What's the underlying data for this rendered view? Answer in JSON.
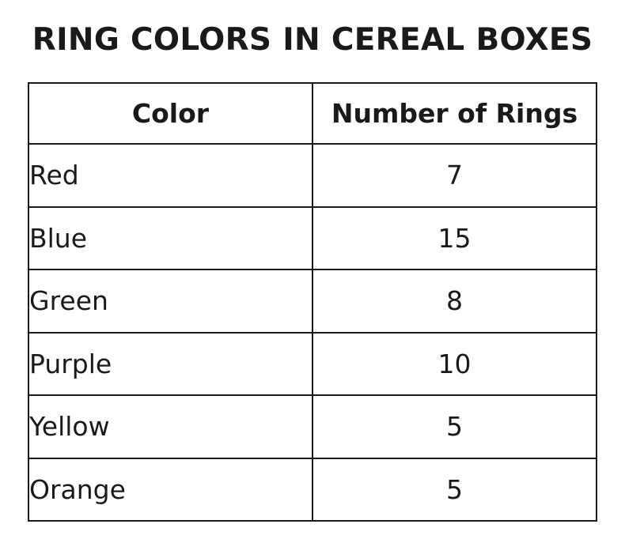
{
  "chart_data": {
    "type": "table",
    "title": "RING COLORS IN CEREAL BOXES",
    "columns": [
      "Color",
      "Number of Rings"
    ],
    "rows": [
      {
        "color": "Red",
        "count": "7"
      },
      {
        "color": "Blue",
        "count": "15"
      },
      {
        "color": "Green",
        "count": "8"
      },
      {
        "color": "Purple",
        "count": "10"
      },
      {
        "color": "Yellow",
        "count": "5"
      },
      {
        "color": "Orange",
        "count": "5"
      }
    ]
  }
}
